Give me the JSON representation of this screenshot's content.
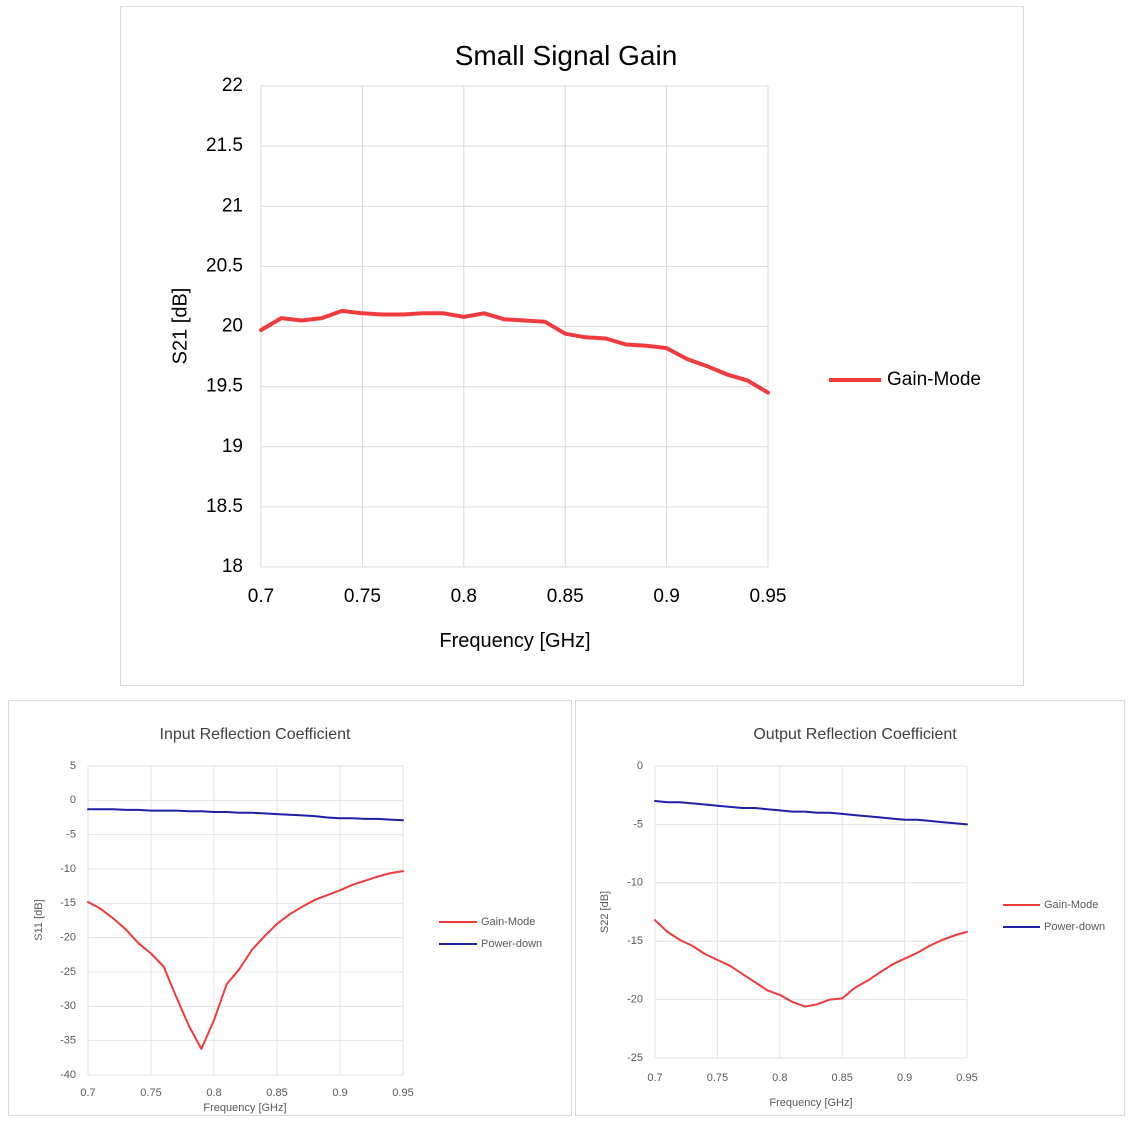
{
  "chart_data": [
    {
      "type": "line",
      "title": "Small Signal Gain",
      "xlabel": "Frequency [GHz]",
      "ylabel": "S21 [dB]",
      "xlim": [
        0.7,
        0.95
      ],
      "ylim": [
        18,
        22
      ],
      "x_ticks": [
        "0.7",
        "0.75",
        "0.8",
        "0.85",
        "0.9",
        "0.95"
      ],
      "y_ticks": [
        "18",
        "18.5",
        "19",
        "19.5",
        "20",
        "20.5",
        "21",
        "21.5",
        "22"
      ],
      "grid": true,
      "legend_position": "right",
      "x": [
        0.7,
        0.71,
        0.72,
        0.73,
        0.74,
        0.75,
        0.76,
        0.77,
        0.78,
        0.79,
        0.8,
        0.81,
        0.82,
        0.83,
        0.84,
        0.85,
        0.86,
        0.87,
        0.88,
        0.89,
        0.9,
        0.91,
        0.92,
        0.93,
        0.94,
        0.95
      ],
      "series": [
        {
          "name": "Gain-Mode",
          "color": "#ef3b3b",
          "values": [
            19.97,
            20.07,
            20.05,
            20.07,
            20.13,
            20.11,
            20.1,
            20.1,
            20.11,
            20.11,
            20.08,
            20.11,
            20.06,
            20.05,
            20.04,
            19.94,
            19.91,
            19.9,
            19.85,
            19.84,
            19.82,
            19.73,
            19.67,
            19.6,
            19.55,
            19.45
          ]
        }
      ]
    },
    {
      "type": "line",
      "title": "Input Reflection Coefficient",
      "xlabel": "Frequency [GHz]",
      "ylabel": "S11 [dB]",
      "xlim": [
        0.7,
        0.95
      ],
      "ylim": [
        -40,
        5
      ],
      "x_ticks": [
        "0.7",
        "0.75",
        "0.8",
        "0.85",
        "0.9",
        "0.95"
      ],
      "y_ticks": [
        "-40",
        "-35",
        "-30",
        "-25",
        "-20",
        "-15",
        "-10",
        "-5",
        "0",
        "5"
      ],
      "grid": true,
      "legend_position": "right",
      "x": [
        0.7,
        0.71,
        0.72,
        0.73,
        0.74,
        0.75,
        0.76,
        0.77,
        0.78,
        0.79,
        0.8,
        0.81,
        0.82,
        0.83,
        0.84,
        0.85,
        0.86,
        0.87,
        0.88,
        0.89,
        0.9,
        0.91,
        0.92,
        0.93,
        0.94,
        0.95
      ],
      "series": [
        {
          "name": "Gain-Mode",
          "color": "#ef3b3b",
          "values": [
            -14.8,
            -15.8,
            -17.2,
            -18.8,
            -20.8,
            -22.3,
            -24.2,
            -28.6,
            -32.8,
            -36.2,
            -32.0,
            -26.8,
            -24.6,
            -21.8,
            -19.8,
            -18.0,
            -16.6,
            -15.5,
            -14.5,
            -13.8,
            -13.1,
            -12.3,
            -11.7,
            -11.1,
            -10.6,
            -10.3
          ]
        },
        {
          "name": "Power-down",
          "color": "#1f1fa8",
          "values": [
            -1.3,
            -1.3,
            -1.3,
            -1.4,
            -1.4,
            -1.5,
            -1.5,
            -1.5,
            -1.6,
            -1.6,
            -1.7,
            -1.7,
            -1.8,
            -1.8,
            -1.9,
            -2.0,
            -2.1,
            -2.2,
            -2.3,
            -2.5,
            -2.6,
            -2.6,
            -2.7,
            -2.7,
            -2.8,
            -2.9
          ]
        }
      ]
    },
    {
      "type": "line",
      "title": "Output Reflection Coefficient",
      "xlabel": "Frequency [GHz]",
      "ylabel": "S22 [dB]",
      "xlim": [
        0.7,
        0.95
      ],
      "ylim": [
        -25,
        0
      ],
      "x_ticks": [
        "0.7",
        "0.75",
        "0.8",
        "0.85",
        "0.9",
        "0.95"
      ],
      "y_ticks": [
        "-25",
        "-20",
        "-15",
        "-10",
        "-5",
        "0"
      ],
      "grid": true,
      "legend_position": "right",
      "x": [
        0.7,
        0.71,
        0.72,
        0.73,
        0.74,
        0.75,
        0.76,
        0.77,
        0.78,
        0.79,
        0.8,
        0.81,
        0.82,
        0.83,
        0.84,
        0.85,
        0.86,
        0.87,
        0.88,
        0.89,
        0.9,
        0.91,
        0.92,
        0.93,
        0.94,
        0.95
      ],
      "series": [
        {
          "name": "Gain-Mode",
          "color": "#ef3b3b",
          "values": [
            -13.2,
            -14.2,
            -14.9,
            -15.4,
            -16.1,
            -16.6,
            -17.1,
            -17.8,
            -18.5,
            -19.2,
            -19.6,
            -20.2,
            -20.6,
            -20.4,
            -20.0,
            -19.9,
            -19.0,
            -18.4,
            -17.7,
            -17.0,
            -16.5,
            -16.0,
            -15.4,
            -14.9,
            -14.5,
            -14.2
          ]
        },
        {
          "name": "Power-down",
          "color": "#1f1fa8",
          "values": [
            -3.0,
            -3.1,
            -3.1,
            -3.2,
            -3.3,
            -3.4,
            -3.5,
            -3.6,
            -3.6,
            -3.7,
            -3.8,
            -3.9,
            -3.9,
            -4.0,
            -4.0,
            -4.1,
            -4.2,
            -4.3,
            -4.4,
            -4.5,
            -4.6,
            -4.6,
            -4.7,
            -4.8,
            -4.9,
            -5.0
          ]
        }
      ]
    }
  ]
}
